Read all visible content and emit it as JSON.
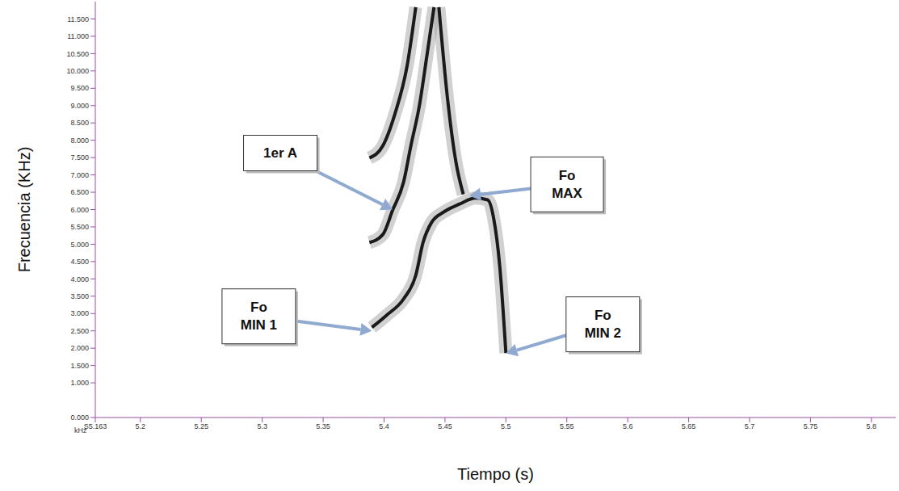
{
  "chart_data": {
    "type": "line",
    "x_label": "Tiempo (s)",
    "y_label": "Frecuencia (KHz)",
    "axis_unit": "kHz",
    "xlim": [
      5.163,
      5.82
    ],
    "xticks": [
      {
        "value": 5.163,
        "label": "S5.163"
      },
      5.2,
      5.25,
      5.3,
      5.35,
      5.4,
      5.45,
      5.5,
      5.55,
      5.6,
      5.65,
      5.7,
      5.75,
      5.8
    ],
    "ylim": [
      0,
      12
    ],
    "yticks": [
      {
        "value": 0,
        "label": "0.000"
      },
      {
        "value": 1,
        "label": "1.000"
      },
      {
        "value": 1.5,
        "label": "1.500"
      },
      {
        "value": 2,
        "label": "2.000"
      },
      {
        "value": 2.5,
        "label": "2.500"
      },
      {
        "value": 3,
        "label": "3.000"
      },
      {
        "value": 3.5,
        "label": "3.500"
      },
      {
        "value": 4,
        "label": "4.000"
      },
      {
        "value": 4.5,
        "label": "4.500"
      },
      {
        "value": 5,
        "label": "5.000"
      },
      {
        "value": 5.5,
        "label": "5.500"
      },
      {
        "value": 6,
        "label": "6.000"
      },
      {
        "value": 6.5,
        "label": "6.500"
      },
      {
        "value": 7,
        "label": "7.000"
      },
      {
        "value": 7.5,
        "label": "7.500"
      },
      {
        "value": 8,
        "label": "8.000"
      },
      {
        "value": 8.5,
        "label": "8.500"
      },
      {
        "value": 9,
        "label": "9.000"
      },
      {
        "value": 9.5,
        "label": "9.500"
      },
      {
        "value": 10,
        "label": "10.000"
      },
      {
        "value": 10.5,
        "label": "10.500"
      },
      {
        "value": 11,
        "label": "11.000"
      },
      {
        "value": 11.5,
        "label": "11.500"
      }
    ],
    "grid": false,
    "series": [
      {
        "color": "#1a1a1a",
        "x": [
          5.39,
          5.402,
          5.416,
          5.426,
          5.432,
          5.439,
          5.449,
          5.462,
          5.475,
          5.485,
          5.49,
          5.495,
          5.5
        ],
        "values": [
          2.6,
          2.95,
          3.42,
          4.1,
          5.05,
          5.63,
          5.93,
          6.16,
          6.33,
          6.28,
          5.74,
          4.35,
          1.86
        ]
      },
      {
        "color": "#1a1a1a",
        "x": [
          5.388,
          5.399,
          5.407,
          5.416,
          5.422,
          5.429,
          5.435,
          5.441
        ],
        "values": [
          5.05,
          5.28,
          5.98,
          6.79,
          7.84,
          9.0,
          10.4,
          11.84
        ]
      },
      {
        "color": "#1a1a1a",
        "x": [
          5.388,
          5.399,
          5.409,
          5.419,
          5.426
        ],
        "values": [
          7.49,
          7.84,
          8.77,
          10.16,
          11.84
        ]
      },
      {
        "color": "#1a1a1a",
        "x": [
          5.445,
          5.452,
          5.459,
          5.465
        ],
        "values": [
          11.84,
          9.23,
          7.37,
          6.44
        ]
      }
    ],
    "annotations": [
      {
        "lines": [
          "1er A"
        ],
        "x": 5.407,
        "y": 6.0
      },
      {
        "lines": [
          "Fo",
          "MAX"
        ],
        "x": 5.47,
        "y": 6.4
      },
      {
        "lines": [
          "Fo",
          "MIN 1"
        ],
        "x": 5.39,
        "y": 2.5
      },
      {
        "lines": [
          "Fo",
          "MIN 2"
        ],
        "x": 5.5,
        "y": 1.85
      }
    ]
  }
}
